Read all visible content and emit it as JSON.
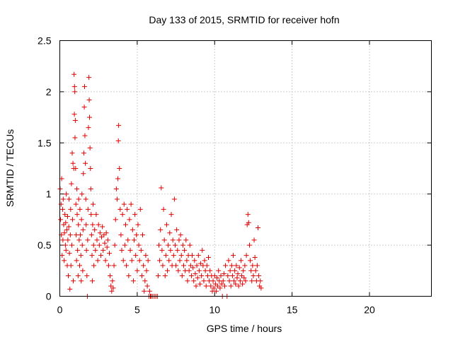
{
  "chart_data": {
    "type": "scatter",
    "title": "Day 133 of 2015, SRMTID for receiver hofn",
    "xlabel": "GPS time / hours",
    "ylabel": "SRMTID / TECUs",
    "xlim": [
      0,
      24
    ],
    "ylim": [
      0,
      2.5
    ],
    "x_ticks": [
      "0",
      "5",
      "10",
      "15",
      "20"
    ],
    "y_ticks": [
      "0",
      "0.5",
      "1",
      "1.5",
      "2",
      "2.5"
    ],
    "x_tick_values": [
      0,
      5,
      10,
      15,
      20
    ],
    "y_tick_values": [
      0,
      0.5,
      1,
      1.5,
      2,
      2.5
    ],
    "grid": true,
    "marker": "+",
    "color": "#e00000",
    "series": [
      {
        "values": [
          [
            0.02,
            1.05
          ],
          [
            0.05,
            0.75
          ],
          [
            0.08,
            0.9
          ],
          [
            0.1,
            0.6
          ],
          [
            0.12,
            1.15
          ],
          [
            0.15,
            0.4
          ],
          [
            0.18,
            0.85
          ],
          [
            0.2,
            0.55
          ],
          [
            0.22,
            0.95
          ],
          [
            0.25,
            0.7
          ],
          [
            0.28,
            0.35
          ],
          [
            0.3,
            0.62
          ],
          [
            0.33,
            0.8
          ],
          [
            0.36,
            0.5
          ],
          [
            0.38,
            0.72
          ],
          [
            0.4,
            0.45
          ],
          [
            0.42,
            1.0
          ],
          [
            0.45,
            0.65
          ],
          [
            0.48,
            0.3
          ],
          [
            0.5,
            0.78
          ],
          [
            0.52,
            0.55
          ],
          [
            0.55,
            0.2
          ],
          [
            0.58,
            0.68
          ],
          [
            0.6,
            0.95
          ],
          [
            0.62,
            0.42
          ],
          [
            0.65,
            0.07
          ],
          [
            0.68,
            0.6
          ],
          [
            0.7,
            0.85
          ],
          [
            0.72,
            0.3
          ],
          [
            0.75,
            1.1
          ],
          [
            0.78,
            0.5
          ],
          [
            0.8,
            1.4
          ],
          [
            0.82,
            0.75
          ],
          [
            0.85,
            1.3
          ],
          [
            0.87,
            0.15
          ],
          [
            0.9,
            1.25
          ],
          [
            0.92,
            2.17
          ],
          [
            0.94,
            1.78
          ],
          [
            0.95,
            2.05
          ],
          [
            0.97,
            2.0
          ],
          [
            0.98,
            1.55
          ],
          [
            1.0,
            1.72
          ],
          [
            1.02,
            1.25
          ],
          [
            1.04,
            0.9
          ],
          [
            1.06,
            0.6
          ],
          [
            1.08,
            0.35
          ],
          [
            1.1,
            1.05
          ],
          [
            1.12,
            0.8
          ],
          [
            1.15,
            0.45
          ],
          [
            1.18,
            0.2
          ],
          [
            1.2,
            0.7
          ],
          [
            1.22,
            0.95
          ],
          [
            1.25,
            0.55
          ],
          [
            1.28,
            0.3
          ],
          [
            1.3,
            0.85
          ],
          [
            1.33,
            0.6
          ],
          [
            1.36,
            0.4
          ],
          [
            1.38,
            0.15
          ],
          [
            1.4,
            0.75
          ],
          [
            1.43,
            1.0
          ],
          [
            1.45,
            0.5
          ],
          [
            1.48,
            0.25
          ],
          [
            1.5,
            0.65
          ],
          [
            1.52,
            1.2
          ],
          [
            1.55,
            1.4
          ],
          [
            1.58,
            1.85
          ],
          [
            1.6,
            2.05
          ],
          [
            1.62,
            1.57
          ],
          [
            1.65,
            1.3
          ],
          [
            1.68,
            0.95
          ],
          [
            1.7,
            0.7
          ],
          [
            1.72,
            0.45
          ],
          [
            1.75,
            0.2
          ],
          [
            1.78,
            0.0
          ],
          [
            1.8,
            0.55
          ],
          [
            1.82,
            0.85
          ],
          [
            1.85,
            1.65
          ],
          [
            1.88,
            2.14
          ],
          [
            1.9,
            1.92
          ],
          [
            1.92,
            1.75
          ],
          [
            1.95,
            1.45
          ],
          [
            1.98,
            1.25
          ],
          [
            2.0,
            1.05
          ],
          [
            2.02,
            0.8
          ],
          [
            2.05,
            0.6
          ],
          [
            2.08,
            0.4
          ],
          [
            2.1,
            0.15
          ],
          [
            2.12,
            0.7
          ],
          [
            2.15,
            0.9
          ],
          [
            2.18,
            0.5
          ],
          [
            2.2,
            0.3
          ],
          [
            2.25,
            0.65
          ],
          [
            2.3,
            0.45
          ],
          [
            2.35,
            0.8
          ],
          [
            2.4,
            0.55
          ],
          [
            2.45,
            0.35
          ],
          [
            2.5,
            0.7
          ],
          [
            2.55,
            0.5
          ],
          [
            2.6,
            0.62
          ],
          [
            2.65,
            0.4
          ],
          [
            2.7,
            0.58
          ],
          [
            2.75,
            0.68
          ],
          [
            2.8,
            0.45
          ],
          [
            2.85,
            0.6
          ],
          [
            2.9,
            0.52
          ],
          [
            2.95,
            0.35
          ],
          [
            3.0,
            0.62
          ],
          [
            3.05,
            0.48
          ],
          [
            3.1,
            0.55
          ],
          [
            3.15,
            0.3
          ],
          [
            3.2,
            0.42
          ],
          [
            3.25,
            0.2
          ],
          [
            3.3,
            0.1
          ],
          [
            3.35,
            0.05
          ],
          [
            3.4,
            0.15
          ],
          [
            3.45,
            0.08
          ],
          [
            3.5,
            0.3
          ],
          [
            3.55,
            0.5
          ],
          [
            3.6,
            0.75
          ],
          [
            3.65,
            1.05
          ],
          [
            3.7,
            0.95
          ],
          [
            3.75,
            1.15
          ],
          [
            3.78,
            1.52
          ],
          [
            3.8,
            1.67
          ],
          [
            3.85,
            1.25
          ],
          [
            3.9,
            0.85
          ],
          [
            3.95,
            0.6
          ],
          [
            4.0,
            0.45
          ],
          [
            4.05,
            0.8
          ],
          [
            4.1,
            0.35
          ],
          [
            4.15,
            0.9
          ],
          [
            4.2,
            0.5
          ],
          [
            4.25,
            0.7
          ],
          [
            4.3,
            0.3
          ],
          [
            4.35,
            0.85
          ],
          [
            4.4,
            0.55
          ],
          [
            4.45,
            0.2
          ],
          [
            4.5,
            0.75
          ],
          [
            4.55,
            0.45
          ],
          [
            4.6,
            0.9
          ],
          [
            4.65,
            0.35
          ],
          [
            4.7,
            0.65
          ],
          [
            4.75,
            0.15
          ],
          [
            4.8,
            0.55
          ],
          [
            4.85,
            0.8
          ],
          [
            4.9,
            0.4
          ],
          [
            4.95,
            0.6
          ],
          [
            5.0,
            0.25
          ],
          [
            5.05,
            0.7
          ],
          [
            5.1,
            0.5
          ],
          [
            5.15,
            0.35
          ],
          [
            5.2,
            0.85
          ],
          [
            5.25,
            0.45
          ],
          [
            5.3,
            0.2
          ],
          [
            5.35,
            0.6
          ],
          [
            5.4,
            0.3
          ],
          [
            5.45,
            0.05
          ],
          [
            5.5,
            0.15
          ],
          [
            5.55,
            0.4
          ],
          [
            5.6,
            0.25
          ],
          [
            5.65,
            0.1
          ],
          [
            5.7,
            0.35
          ],
          [
            5.75,
            0.0
          ],
          [
            5.8,
            0.05
          ],
          [
            5.85,
            0.0
          ],
          [
            5.9,
            0.0
          ],
          [
            6.0,
            0.0
          ],
          [
            6.1,
            0.0
          ],
          [
            6.2,
            0.0
          ],
          [
            6.3,
            0.0
          ],
          [
            6.35,
            0.2
          ],
          [
            6.4,
            0.5
          ],
          [
            6.45,
            0.35
          ],
          [
            6.5,
            0.65
          ],
          [
            6.55,
            1.06
          ],
          [
            6.6,
            0.45
          ],
          [
            6.65,
            0.3
          ],
          [
            6.7,
            0.85
          ],
          [
            6.75,
            0.55
          ],
          [
            6.8,
            0.2
          ],
          [
            6.85,
            0.4
          ],
          [
            6.9,
            0.7
          ],
          [
            6.95,
            0.25
          ],
          [
            7.0,
            0.5
          ],
          [
            7.05,
            0.35
          ],
          [
            7.1,
            0.62
          ],
          [
            7.15,
            0.45
          ],
          [
            7.2,
            0.8
          ],
          [
            7.25,
            0.3
          ],
          [
            7.3,
            0.55
          ],
          [
            7.35,
            0.4
          ],
          [
            7.4,
            0.95
          ],
          [
            7.45,
            0.5
          ],
          [
            7.5,
            0.3
          ],
          [
            7.55,
            0.65
          ],
          [
            7.6,
            0.45
          ],
          [
            7.65,
            0.25
          ],
          [
            7.7,
            0.55
          ],
          [
            7.75,
            0.35
          ],
          [
            7.8,
            0.6
          ],
          [
            7.85,
            0.4
          ],
          [
            7.9,
            0.2
          ],
          [
            7.95,
            0.5
          ],
          [
            8.0,
            0.3
          ],
          [
            8.05,
            0.45
          ],
          [
            8.1,
            0.25
          ],
          [
            8.15,
            0.55
          ],
          [
            8.2,
            0.35
          ],
          [
            8.25,
            0.15
          ],
          [
            8.3,
            0.4
          ],
          [
            8.35,
            0.25
          ],
          [
            8.4,
            0.5
          ],
          [
            8.45,
            0.3
          ],
          [
            8.5,
            0.2
          ],
          [
            8.55,
            0.4
          ],
          [
            8.6,
            0.28
          ],
          [
            8.65,
            0.15
          ],
          [
            8.7,
            0.35
          ],
          [
            8.75,
            0.22
          ],
          [
            8.8,
            0.1
          ],
          [
            8.85,
            0.3
          ],
          [
            8.9,
            0.18
          ],
          [
            8.95,
            0.4
          ],
          [
            9.0,
            0.25
          ],
          [
            9.05,
            0.12
          ],
          [
            9.1,
            0.32
          ],
          [
            9.15,
            0.2
          ],
          [
            9.2,
            0.45
          ],
          [
            9.25,
            0.3
          ],
          [
            9.3,
            0.15
          ],
          [
            9.35,
            0.35
          ],
          [
            9.4,
            0.25
          ],
          [
            9.45,
            0.1
          ],
          [
            9.5,
            0.3
          ],
          [
            9.55,
            0.2
          ],
          [
            9.6,
            0.38
          ],
          [
            9.65,
            0.15
          ],
          [
            9.7,
            0.25
          ],
          [
            9.75,
            0.1
          ],
          [
            9.8,
            0.2
          ],
          [
            9.85,
            0.05
          ],
          [
            9.9,
            0.15
          ],
          [
            9.95,
            0.08
          ],
          [
            10.0,
            0.2
          ],
          [
            10.05,
            0.12
          ],
          [
            10.1,
            0.05
          ],
          [
            10.15,
            0.18
          ],
          [
            10.2,
            0.1
          ],
          [
            10.25,
            0.25
          ],
          [
            10.3,
            0.15
          ],
          [
            10.35,
            0.08
          ],
          [
            10.4,
            0.2
          ],
          [
            10.45,
            0.12
          ],
          [
            10.5,
            0.0
          ],
          [
            10.55,
            0.15
          ],
          [
            10.6,
            0.22
          ],
          [
            10.65,
            0.1
          ],
          [
            10.7,
            0.3
          ],
          [
            10.8,
            0.0
          ],
          [
            10.85,
            0.2
          ],
          [
            10.9,
            0.35
          ],
          [
            10.95,
            0.15
          ],
          [
            11.0,
            0.25
          ],
          [
            11.05,
            0.1
          ],
          [
            11.1,
            0.3
          ],
          [
            11.15,
            0.2
          ],
          [
            11.2,
            0.4
          ],
          [
            11.25,
            0.15
          ],
          [
            11.3,
            0.25
          ],
          [
            11.35,
            0.12
          ],
          [
            11.4,
            0.3
          ],
          [
            11.45,
            0.18
          ],
          [
            11.5,
            0.22
          ],
          [
            11.55,
            0.1
          ],
          [
            11.6,
            0.28
          ],
          [
            11.65,
            0.15
          ],
          [
            11.7,
            0.35
          ],
          [
            11.75,
            0.2
          ],
          [
            11.8,
            0.12
          ],
          [
            11.85,
            0.25
          ],
          [
            11.9,
            0.18
          ],
          [
            11.95,
            0.3
          ],
          [
            12.0,
            0.15
          ],
          [
            12.05,
            0.4
          ],
          [
            12.1,
            0.7
          ],
          [
            12.15,
            0.8
          ],
          [
            12.2,
            0.72
          ],
          [
            12.25,
            0.5
          ],
          [
            12.3,
            0.35
          ],
          [
            12.35,
            0.25
          ],
          [
            12.4,
            0.15
          ],
          [
            12.45,
            0.3
          ],
          [
            12.5,
            0.2
          ],
          [
            12.55,
            0.55
          ],
          [
            12.6,
            0.38
          ],
          [
            12.65,
            0.25
          ],
          [
            12.7,
            0.15
          ],
          [
            12.75,
            0.3
          ],
          [
            12.8,
            0.67
          ],
          [
            12.85,
            0.2
          ],
          [
            12.9,
            0.1
          ],
          [
            12.95,
            0.15
          ],
          [
            13.0,
            0.08
          ]
        ]
      }
    ]
  }
}
